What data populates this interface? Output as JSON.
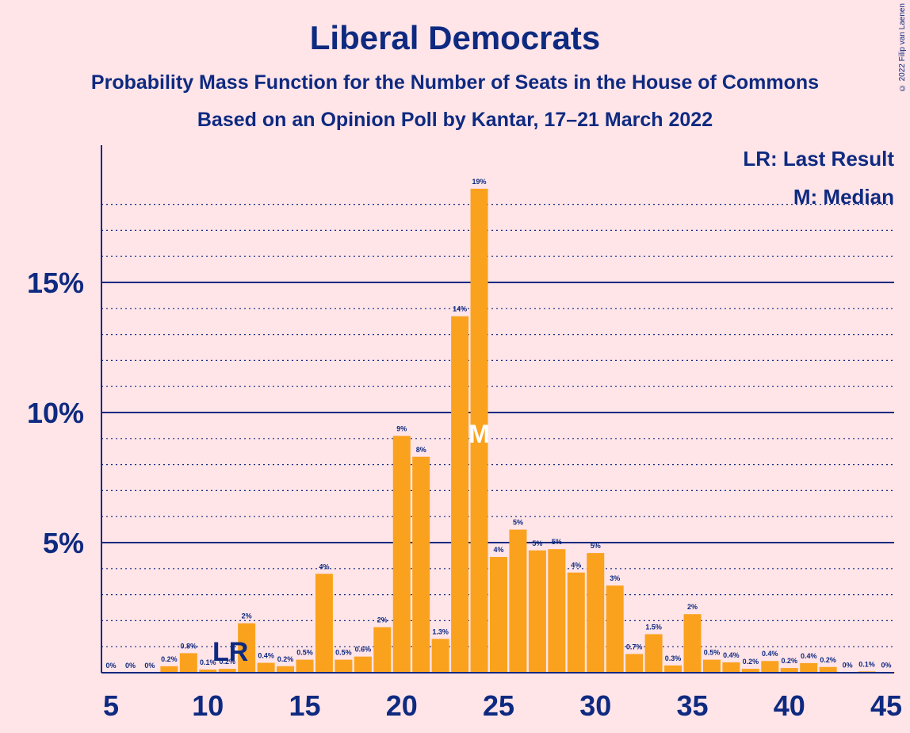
{
  "chart_data": {
    "type": "bar",
    "title": "Liberal Democrats",
    "subtitle": "Probability Mass Function for the Number of Seats in the House of Commons",
    "subtitle2": "Based on an Opinion Poll by Kantar, 17–21 March 2022",
    "copyright": "© 2022 Filip van Laenen",
    "legend": {
      "last_result": "LR: Last Result",
      "median": "M: Median",
      "placement": "top-right"
    },
    "x": [
      5,
      6,
      7,
      8,
      9,
      10,
      11,
      12,
      13,
      14,
      15,
      16,
      17,
      18,
      19,
      20,
      21,
      22,
      23,
      24,
      25,
      26,
      27,
      28,
      29,
      30,
      31,
      32,
      33,
      34,
      35,
      36,
      37,
      38,
      39,
      40,
      41,
      42,
      43,
      44,
      45
    ],
    "values": [
      0,
      0,
      0,
      0.2,
      0.8,
      0.1,
      0.2,
      2,
      0.4,
      0.2,
      0.5,
      4,
      0.5,
      0.6,
      2,
      9,
      8,
      1.3,
      14,
      19,
      4,
      5,
      5,
      5,
      4,
      5,
      3,
      0.7,
      1.5,
      0.3,
      2,
      0.5,
      0.4,
      0.2,
      0.4,
      0.2,
      0.4,
      0.2,
      0,
      0.1,
      0
    ],
    "heights": [
      0,
      0,
      0,
      0.25,
      0.75,
      0.12,
      0.15,
      1.9,
      0.38,
      0.25,
      0.5,
      3.8,
      0.5,
      0.62,
      1.75,
      9.1,
      8.3,
      1.3,
      13.7,
      18.6,
      4.45,
      5.5,
      4.7,
      4.75,
      3.85,
      4.6,
      3.35,
      0.72,
      1.48,
      0.28,
      2.25,
      0.5,
      0.4,
      0.15,
      0.45,
      0.18,
      0.37,
      0.22,
      0.02,
      0.05,
      0.02
    ],
    "labels": [
      "0%",
      "0%",
      "0%",
      "0.2%",
      "0.8%",
      "0.1%",
      "0.2%",
      "2%",
      "0.4%",
      "0.2%",
      "0.5%",
      "4%",
      "0.5%",
      "0.6%",
      "2%",
      "9%",
      "8%",
      "1.3%",
      "14%",
      "19%",
      "4%",
      "5%",
      "5%",
      "5%",
      "4%",
      "5%",
      "3%",
      "0.7%",
      "1.5%",
      "0.3%",
      "2%",
      "0.5%",
      "0.4%",
      "0.2%",
      "0.4%",
      "0.2%",
      "0.4%",
      "0.2%",
      "0%",
      "0.1%",
      "0%"
    ],
    "x_ticks": [
      5,
      10,
      15,
      20,
      25,
      30,
      35,
      40,
      45
    ],
    "x_tick_labels": [
      "5",
      "10",
      "15",
      "20",
      "25",
      "30",
      "35",
      "40",
      "45"
    ],
    "y_ticks": [
      5,
      10,
      15
    ],
    "y_tick_labels": [
      "5%",
      "10%",
      "15%"
    ],
    "ylim": [
      0,
      20
    ],
    "xlabel": "",
    "ylabel": "",
    "last_result_seat": 11,
    "last_result_label": "LR",
    "median_seat": 24,
    "median_label": "M",
    "colors": {
      "bar": "#FAA21E",
      "axis": "#0E2A80",
      "background": "#FFE4E8"
    }
  }
}
